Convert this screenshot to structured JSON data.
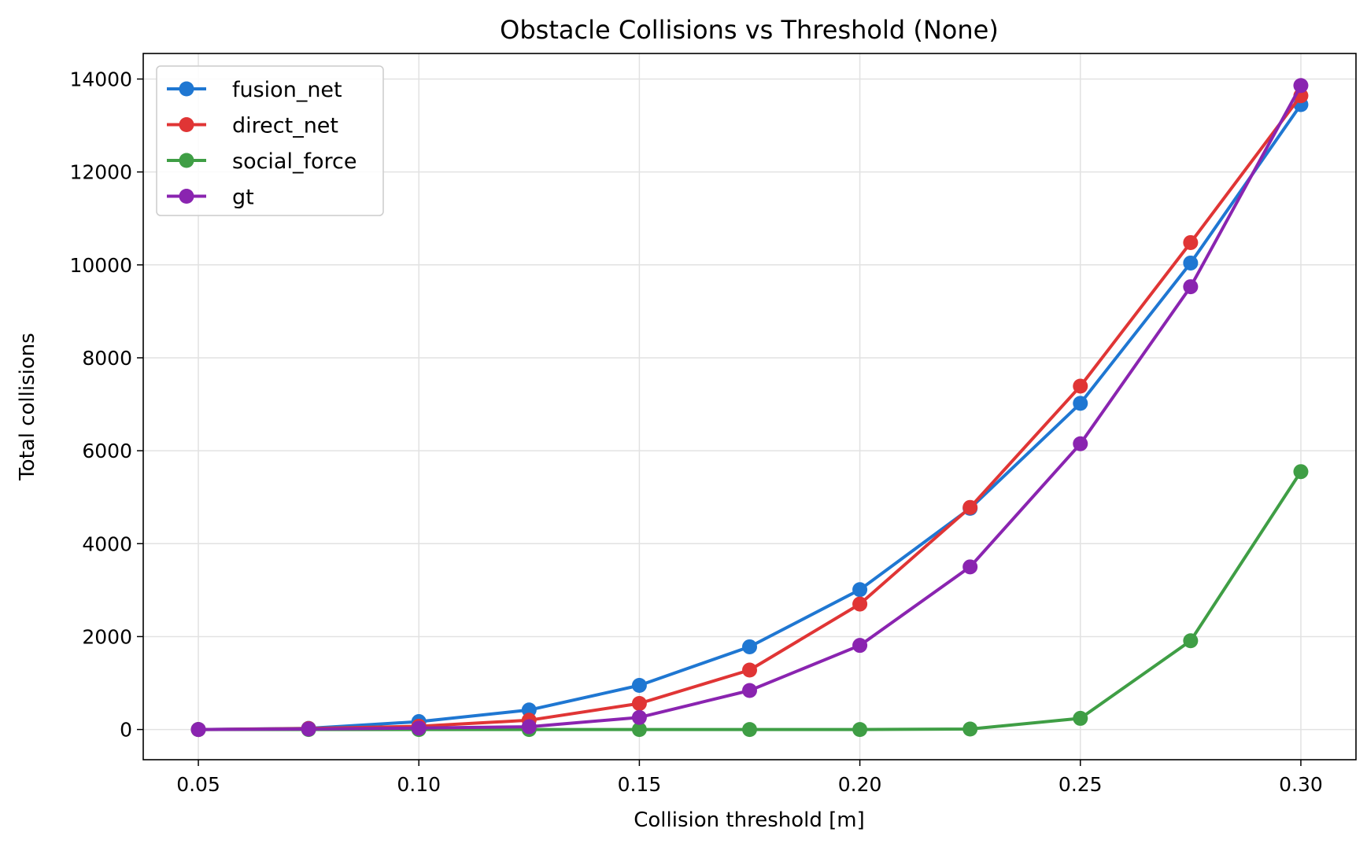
{
  "chart_data": {
    "type": "line",
    "title": "Obstacle Collisions vs Threshold (None)",
    "xlabel": "Collision threshold [m]",
    "ylabel": "Total collisions",
    "x": [
      0.05,
      0.075,
      0.1,
      0.125,
      0.15,
      0.175,
      0.2,
      0.225,
      0.25,
      0.275,
      0.3
    ],
    "xlim": [
      0.0375,
      0.3125
    ],
    "ylim": [
      -650,
      14550
    ],
    "xticks": [
      0.05,
      0.1,
      0.15,
      0.2,
      0.25,
      0.3
    ],
    "xtick_labels": [
      "0.05",
      "0.10",
      "0.15",
      "0.20",
      "0.25",
      "0.30"
    ],
    "yticks": [
      0,
      2000,
      4000,
      6000,
      8000,
      10000,
      12000,
      14000
    ],
    "ytick_labels": [
      "0",
      "2000",
      "4000",
      "6000",
      "8000",
      "10000",
      "12000",
      "14000"
    ],
    "grid": true,
    "legend_position": "top-left",
    "series": [
      {
        "name": "fusion_net",
        "color": "#1f77d2",
        "values": [
          0,
          25,
          170,
          420,
          950,
          1780,
          3010,
          4760,
          7020,
          10040,
          13450
        ]
      },
      {
        "name": "direct_net",
        "color": "#e03535",
        "values": [
          0,
          20,
          70,
          200,
          560,
          1280,
          2700,
          4780,
          7390,
          10480,
          13640
        ]
      },
      {
        "name": "social_force",
        "color": "#3f9e45",
        "values": [
          0,
          0,
          0,
          0,
          0,
          0,
          0,
          10,
          240,
          1910,
          5550
        ]
      },
      {
        "name": "gt",
        "color": "#8a24b0",
        "values": [
          0,
          10,
          30,
          60,
          260,
          840,
          1810,
          3500,
          6150,
          9530,
          13860
        ]
      }
    ]
  }
}
